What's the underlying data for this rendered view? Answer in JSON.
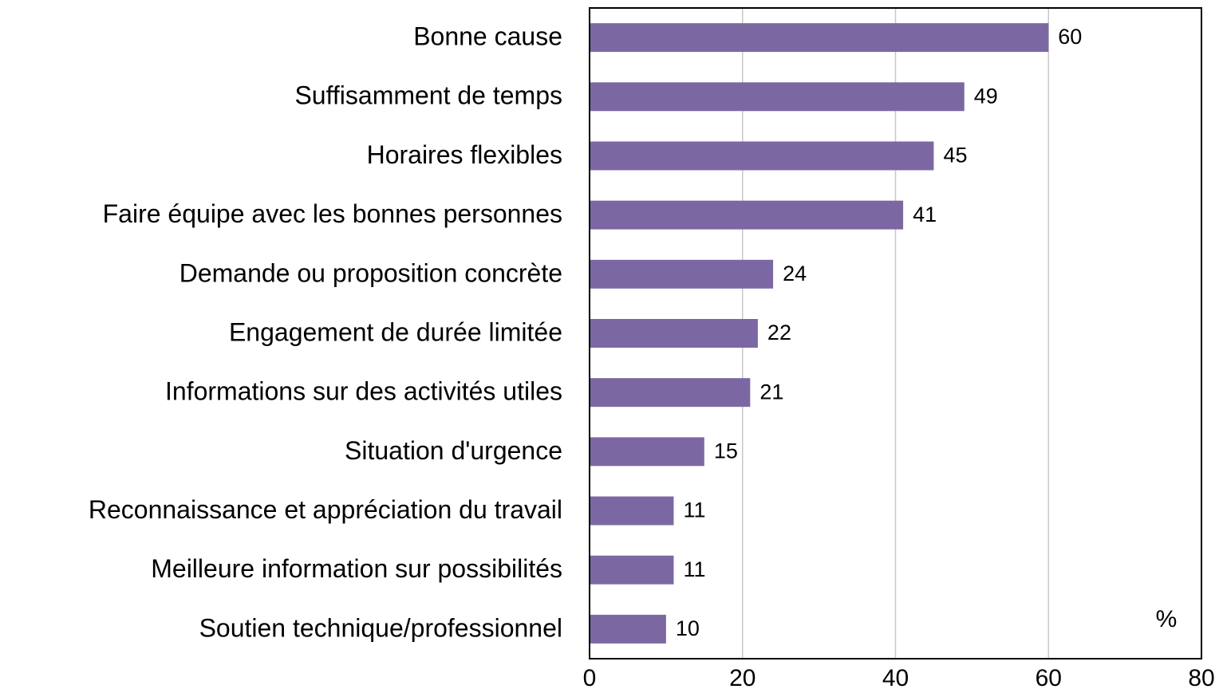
{
  "chart_data": {
    "type": "bar",
    "orientation": "horizontal",
    "categories": [
      "Bonne cause",
      "Suffisamment de temps",
      "Horaires flexibles",
      "Faire équipe avec les bonnes personnes",
      "Demande ou proposition concrète",
      "Engagement de durée limitée",
      "Informations sur des activités utiles",
      "Situation d'urgence",
      "Reconnaissance et appréciation du travail",
      "Meilleure information sur possibilités",
      "Soutien technique/professionnel"
    ],
    "values": [
      60,
      49,
      45,
      41,
      24,
      22,
      21,
      15,
      11,
      11,
      10
    ],
    "color": "#7b68a3",
    "xlim": [
      0,
      80
    ],
    "xticks": [
      0,
      20,
      40,
      60,
      80
    ],
    "grid": true,
    "annotation": "%"
  }
}
